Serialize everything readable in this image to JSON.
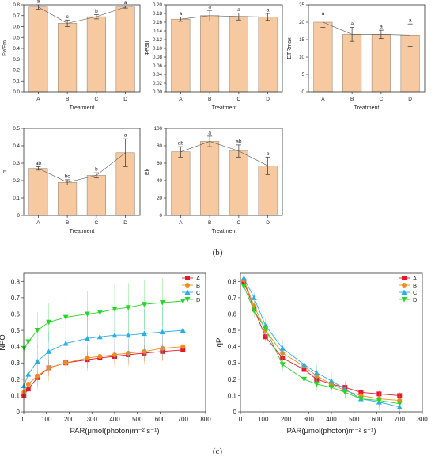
{
  "panel_labels": {
    "b": "(b)",
    "c": "(c)"
  },
  "colors": {
    "bar_fill": "#f7c9a0",
    "bar_stroke": "#8a7a6a",
    "axis": "#333333",
    "series_A": "#e8182b",
    "series_B": "#f28c1e",
    "series_C": "#2aaee6",
    "series_D": "#28d62a"
  },
  "chart_data": [
    {
      "id": "fvfm",
      "type": "bar",
      "title": "",
      "ylabel": "Fv/Fm",
      "xlabel": "Treatment",
      "categories": [
        "A",
        "B",
        "C",
        "D"
      ],
      "values": [
        0.78,
        0.63,
        0.69,
        0.78
      ],
      "errors": [
        0.02,
        0.03,
        0.02,
        0.01
      ],
      "letters": [
        "a",
        "c",
        "b",
        "a"
      ],
      "ylim": [
        0,
        0.8
      ],
      "yticks": [
        "0.0",
        "0.1",
        "0.2",
        "0.3",
        "0.4",
        "0.5",
        "0.6",
        "0.7",
        "0.8"
      ],
      "ytick_values": [
        0,
        0.1,
        0.2,
        0.3,
        0.4,
        0.5,
        0.6,
        0.7,
        0.8
      ],
      "connector": true
    },
    {
      "id": "phipsii",
      "type": "bar",
      "title": "",
      "ylabel": "ΦPSII",
      "xlabel": "Treatment",
      "categories": [
        "A",
        "B",
        "C",
        "D"
      ],
      "values": [
        0.167,
        0.175,
        0.173,
        0.172
      ],
      "errors": [
        0.005,
        0.012,
        0.008,
        0.008
      ],
      "letters": [
        "a",
        "a",
        "a",
        "a"
      ],
      "ylim": [
        0,
        0.2
      ],
      "yticks": [
        "0.00",
        "0.02",
        "0.04",
        "0.06",
        "0.08",
        "0.10",
        "0.12",
        "0.14",
        "0.16",
        "0.18",
        "0.20"
      ],
      "ytick_values": [
        0,
        0.02,
        0.04,
        0.06,
        0.08,
        0.1,
        0.12,
        0.14,
        0.16,
        0.18,
        0.2
      ],
      "connector": true
    },
    {
      "id": "etrmax",
      "type": "bar",
      "title": "",
      "ylabel": "ETRmax",
      "xlabel": "Treatment",
      "categories": [
        "A",
        "B",
        "C",
        "D"
      ],
      "values": [
        20,
        16.5,
        16.5,
        16.3
      ],
      "errors": [
        1.5,
        2.0,
        1.2,
        3.2
      ],
      "letters": [
        "a",
        "a",
        "a",
        "a"
      ],
      "ylim": [
        0,
        25
      ],
      "yticks": [
        "0",
        "5",
        "10",
        "15",
        "20",
        "25"
      ],
      "ytick_values": [
        0,
        5,
        10,
        15,
        20,
        25
      ],
      "connector": true
    },
    {
      "id": "alpha",
      "type": "bar",
      "title": "",
      "ylabel": "α",
      "xlabel": "Treatment",
      "categories": [
        "A",
        "B",
        "C",
        "D"
      ],
      "values": [
        0.27,
        0.19,
        0.23,
        0.36
      ],
      "errors": [
        0.01,
        0.015,
        0.015,
        0.08
      ],
      "letters": [
        "ab",
        "bc",
        "b",
        "a"
      ],
      "ylim": [
        0,
        0.5
      ],
      "yticks": [
        "0",
        "0.1",
        "0.2",
        "0.3",
        "0.4",
        "0.5"
      ],
      "ytick_values": [
        0,
        0.1,
        0.2,
        0.3,
        0.4,
        0.5
      ],
      "connector": true
    },
    {
      "id": "ek",
      "type": "bar",
      "title": "",
      "ylabel": "Ek",
      "xlabel": "Treatment",
      "categories": [
        "A",
        "B",
        "C",
        "D"
      ],
      "values": [
        73,
        85,
        74,
        57
      ],
      "errors": [
        6,
        6,
        7,
        10
      ],
      "letters": [
        "ab",
        "a",
        "ab",
        "b"
      ],
      "ylim": [
        0,
        100
      ],
      "yticks": [
        "0",
        "20",
        "40",
        "60",
        "80",
        "100"
      ],
      "ytick_values": [
        0,
        20,
        40,
        60,
        80,
        100
      ],
      "connector": true
    },
    {
      "id": "npq",
      "type": "line",
      "title": "",
      "ylabel": "NPQ",
      "xlabel": "PAR(μmol(photon)m⁻² s⁻¹)",
      "xlim": [
        0,
        800
      ],
      "ylim": [
        0,
        0.85
      ],
      "xticks": [
        "0",
        "100",
        "200",
        "300",
        "400",
        "500",
        "600",
        "700",
        "800"
      ],
      "xtick_values": [
        0,
        100,
        200,
        300,
        400,
        500,
        600,
        700,
        800
      ],
      "yticks": [
        "0",
        "0.1",
        "0.2",
        "0.3",
        "0.4",
        "0.5",
        "0.6",
        "0.7",
        "0.8"
      ],
      "ytick_values": [
        0,
        0.1,
        0.2,
        0.3,
        0.4,
        0.5,
        0.6,
        0.7,
        0.8
      ],
      "legend": "top-right",
      "x": [
        1,
        20,
        60,
        110,
        185,
        280,
        335,
        400,
        460,
        530,
        610,
        700
      ],
      "series": [
        {
          "name": "A",
          "marker": "square",
          "values": [
            0.1,
            0.14,
            0.21,
            0.27,
            0.3,
            0.32,
            0.33,
            0.34,
            0.35,
            0.36,
            0.37,
            0.38
          ],
          "err": [
            0.03,
            0.04,
            0.05,
            0.05,
            0.05,
            0.05,
            0.05,
            0.05,
            0.05,
            0.05,
            0.05,
            0.05
          ]
        },
        {
          "name": "B",
          "marker": "circle",
          "values": [
            0.12,
            0.17,
            0.22,
            0.27,
            0.3,
            0.33,
            0.34,
            0.35,
            0.36,
            0.37,
            0.39,
            0.4
          ],
          "err": [
            0.04,
            0.06,
            0.08,
            0.08,
            0.08,
            0.08,
            0.08,
            0.08,
            0.08,
            0.08,
            0.08,
            0.08
          ]
        },
        {
          "name": "C",
          "marker": "triangle-up",
          "values": [
            0.16,
            0.23,
            0.31,
            0.37,
            0.42,
            0.45,
            0.46,
            0.47,
            0.47,
            0.48,
            0.49,
            0.5
          ],
          "err": [
            0.05,
            0.08,
            0.1,
            0.12,
            0.13,
            0.14,
            0.14,
            0.15,
            0.15,
            0.15,
            0.15,
            0.15
          ]
        },
        {
          "name": "D",
          "marker": "triangle-down",
          "values": [
            0.39,
            0.43,
            0.5,
            0.55,
            0.58,
            0.6,
            0.61,
            0.63,
            0.64,
            0.66,
            0.67,
            0.68
          ],
          "err": [
            0.07,
            0.09,
            0.11,
            0.12,
            0.13,
            0.14,
            0.14,
            0.15,
            0.15,
            0.15,
            0.15,
            0.15
          ]
        }
      ]
    },
    {
      "id": "qp",
      "type": "line",
      "title": "",
      "ylabel": "qP",
      "xlabel": "PAR(μmol(photon)m⁻² s⁻¹)",
      "xlim": [
        0,
        800
      ],
      "ylim": [
        0,
        0.85
      ],
      "xticks": [
        "0",
        "100",
        "200",
        "300",
        "400",
        "500",
        "600",
        "700",
        "800"
      ],
      "xtick_values": [
        0,
        100,
        200,
        300,
        400,
        500,
        600,
        700,
        800
      ],
      "yticks": [
        "0",
        "0.1",
        "0.2",
        "0.3",
        "0.4",
        "0.5",
        "0.6",
        "0.7",
        "0.8"
      ],
      "ytick_values": [
        0,
        0.1,
        0.2,
        0.3,
        0.4,
        0.5,
        0.6,
        0.7,
        0.8
      ],
      "legend": "top-right",
      "x": [
        15,
        60,
        110,
        185,
        280,
        335,
        400,
        460,
        530,
        610,
        700
      ],
      "series": [
        {
          "name": "A",
          "marker": "square",
          "values": [
            0.8,
            0.63,
            0.46,
            0.33,
            0.26,
            0.2,
            0.17,
            0.15,
            0.12,
            0.11,
            0.1
          ],
          "err": [
            0.02,
            0.03,
            0.03,
            0.03,
            0.03,
            0.03,
            0.03,
            0.03,
            0.03,
            0.02,
            0.02
          ]
        },
        {
          "name": "B",
          "marker": "circle",
          "values": [
            0.81,
            0.65,
            0.5,
            0.36,
            0.28,
            0.22,
            0.17,
            0.13,
            0.1,
            0.08,
            0.07
          ],
          "err": [
            0.03,
            0.04,
            0.04,
            0.04,
            0.04,
            0.04,
            0.04,
            0.04,
            0.04,
            0.04,
            0.04
          ]
        },
        {
          "name": "C",
          "marker": "triangle-up",
          "values": [
            0.82,
            0.7,
            0.53,
            0.39,
            0.29,
            0.24,
            0.19,
            0.14,
            0.08,
            0.06,
            0.03
          ],
          "err": [
            0.02,
            0.03,
            0.04,
            0.05,
            0.05,
            0.05,
            0.05,
            0.05,
            0.05,
            0.05,
            0.04
          ]
        },
        {
          "name": "D",
          "marker": "triangle-down",
          "values": [
            0.77,
            0.62,
            0.51,
            0.29,
            0.2,
            0.17,
            0.15,
            0.12,
            0.08,
            0.07,
            0.05
          ],
          "err": [
            0.03,
            0.04,
            0.04,
            0.04,
            0.04,
            0.04,
            0.04,
            0.04,
            0.04,
            0.04,
            0.04
          ]
        }
      ]
    }
  ]
}
